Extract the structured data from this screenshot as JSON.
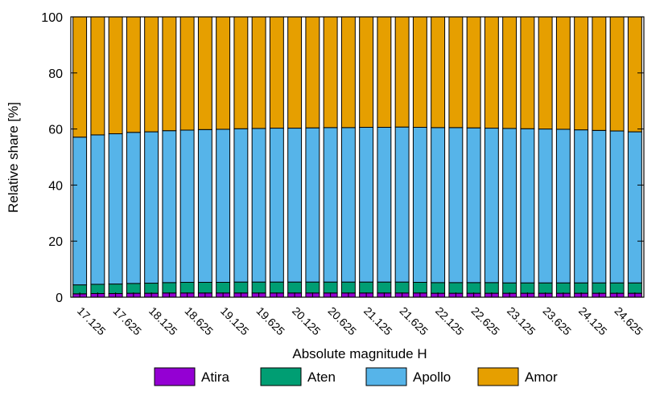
{
  "chart_data": {
    "type": "bar",
    "stacked": true,
    "xlabel": "Absolute magnitude H",
    "ylabel": "Relative share [%]",
    "ylim": [
      0,
      100
    ],
    "yticks": [
      0,
      20,
      40,
      60,
      80,
      100
    ],
    "grid": false,
    "legend_position": "bottom",
    "categories": [
      "17.125",
      "17.375",
      "17.625",
      "17.875",
      "18.125",
      "18.375",
      "18.625",
      "18.875",
      "19.125",
      "19.375",
      "19.625",
      "19.875",
      "20.125",
      "20.375",
      "20.625",
      "20.875",
      "21.125",
      "21.375",
      "21.625",
      "21.875",
      "22.125",
      "22.375",
      "22.625",
      "22.875",
      "23.125",
      "23.375",
      "23.625",
      "23.875",
      "24.125",
      "24.375",
      "24.625",
      "24.875"
    ],
    "tick_labels": [
      "17.125",
      "17.625",
      "18.125",
      "18.625",
      "19.125",
      "19.625",
      "20.125",
      "20.625",
      "21.125",
      "21.625",
      "22.125",
      "22.625",
      "23.125",
      "23.625",
      "24.125",
      "24.625"
    ],
    "series": [
      {
        "name": "Atira",
        "color": "#9400d3",
        "values": [
          1.2,
          1.3,
          1.3,
          1.4,
          1.4,
          1.5,
          1.5,
          1.5,
          1.5,
          1.5,
          1.5,
          1.5,
          1.5,
          1.5,
          1.5,
          1.5,
          1.5,
          1.5,
          1.5,
          1.5,
          1.4,
          1.4,
          1.4,
          1.4,
          1.4,
          1.4,
          1.4,
          1.4,
          1.4,
          1.4,
          1.4,
          1.4
        ]
      },
      {
        "name": "Aten",
        "color": "#009e73",
        "values": [
          3.2,
          3.3,
          3.4,
          3.5,
          3.6,
          3.7,
          3.8,
          3.8,
          3.8,
          3.9,
          3.9,
          3.9,
          3.9,
          3.9,
          3.9,
          3.9,
          3.9,
          3.9,
          3.9,
          3.8,
          3.8,
          3.8,
          3.8,
          3.8,
          3.7,
          3.7,
          3.7,
          3.7,
          3.7,
          3.7,
          3.7,
          3.7
        ]
      },
      {
        "name": "Apollo",
        "color": "#56b4e9",
        "values": [
          52.7,
          53.3,
          53.6,
          53.9,
          54.0,
          54.2,
          54.3,
          54.5,
          54.6,
          54.7,
          54.8,
          54.9,
          54.9,
          55.0,
          55.1,
          55.1,
          55.2,
          55.2,
          55.3,
          55.3,
          55.3,
          55.3,
          55.2,
          55.1,
          55.1,
          55.0,
          54.9,
          54.8,
          54.6,
          54.4,
          54.2,
          53.9
        ]
      },
      {
        "name": "Amor",
        "color": "#e69f00",
        "values": [
          42.9,
          42.1,
          41.7,
          41.2,
          41.0,
          40.6,
          40.4,
          40.2,
          40.1,
          39.9,
          39.8,
          39.7,
          39.7,
          39.6,
          39.5,
          39.5,
          39.4,
          39.4,
          39.3,
          39.4,
          39.5,
          39.5,
          39.6,
          39.7,
          39.8,
          39.9,
          40.0,
          40.1,
          40.3,
          40.5,
          40.7,
          41.0
        ]
      }
    ]
  }
}
